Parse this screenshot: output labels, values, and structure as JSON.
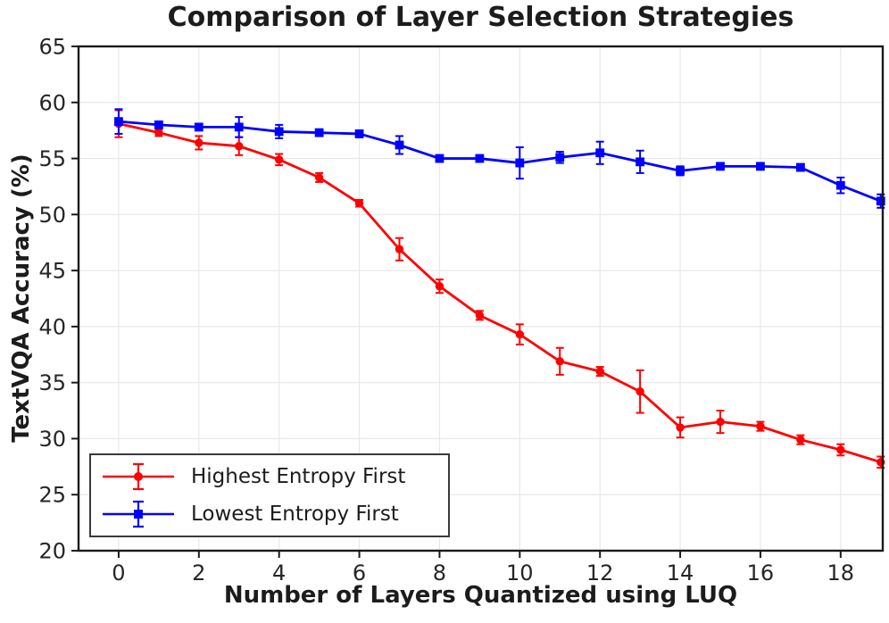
{
  "chart_data": {
    "type": "line",
    "title": "Comparison of Layer Selection Strategies",
    "xlabel": "Number of Layers Quantized using LUQ",
    "ylabel": "TextVQA Accuracy (%)",
    "x": [
      0,
      1,
      2,
      3,
      4,
      5,
      6,
      7,
      8,
      9,
      10,
      11,
      12,
      13,
      14,
      15,
      16,
      17,
      18,
      19
    ],
    "series": [
      {
        "name": "Highest Entropy First",
        "color": "#ff0000",
        "marker": "circle",
        "values": [
          58.1,
          57.3,
          56.4,
          56.1,
          54.9,
          53.3,
          51.0,
          46.9,
          43.6,
          41.0,
          39.3,
          36.9,
          36.0,
          34.2,
          31.0,
          31.5,
          31.1,
          29.9,
          29.0,
          27.9
        ],
        "errors": [
          1.2,
          0.3,
          0.6,
          0.8,
          0.5,
          0.4,
          0.3,
          1.0,
          0.6,
          0.4,
          0.9,
          1.2,
          0.4,
          1.9,
          0.9,
          1.0,
          0.4,
          0.4,
          0.5,
          0.5
        ]
      },
      {
        "name": "Lowest Entropy First",
        "color": "#0000ff",
        "marker": "square",
        "values": [
          58.3,
          58.0,
          57.8,
          57.8,
          57.4,
          57.3,
          57.2,
          56.2,
          55.0,
          55.0,
          54.6,
          55.1,
          55.5,
          54.7,
          53.9,
          54.3,
          54.3,
          54.2,
          52.6,
          51.2
        ],
        "errors": [
          1.1,
          0.3,
          0.3,
          0.9,
          0.6,
          0.3,
          0.3,
          0.8,
          0.3,
          0.3,
          1.4,
          0.5,
          1.0,
          1.0,
          0.4,
          0.3,
          0.3,
          0.3,
          0.7,
          0.6
        ]
      }
    ],
    "xlim": [
      -1,
      19.05
    ],
    "ylim": [
      20,
      65
    ],
    "xticks": [
      0,
      2,
      4,
      6,
      8,
      10,
      12,
      14,
      16,
      18
    ],
    "yticks": [
      20,
      25,
      30,
      35,
      40,
      45,
      50,
      55,
      60,
      65
    ],
    "grid": true,
    "legend_position": "lower-left",
    "colors": {
      "grid": "#e8e8e8",
      "axis": "#1a1a1a",
      "tick_text": "#262626",
      "text": "#1c1c1c"
    }
  }
}
